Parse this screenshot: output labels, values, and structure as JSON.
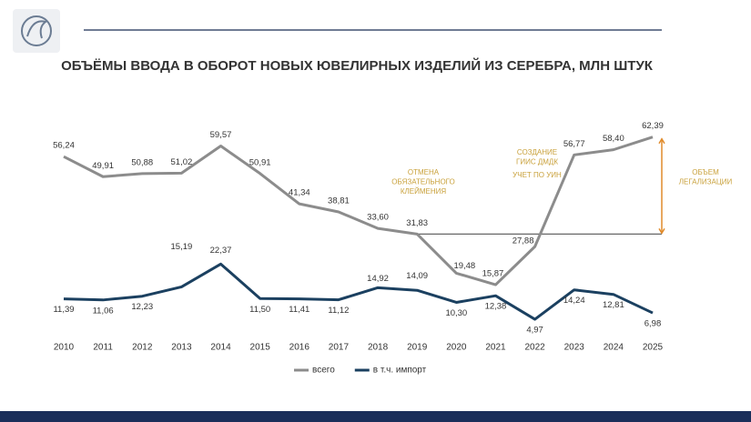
{
  "chart_data": {
    "type": "line",
    "title": "ОБЪЁМЫ ВВОДА В ОБОРОТ НОВЫХ ЮВЕЛИРНЫХ ИЗДЕЛИЙ ИЗ СЕРЕБРА, МЛН ШТУК",
    "categories": [
      "2010",
      "2011",
      "2012",
      "2013",
      "2014",
      "2015",
      "2016",
      "2017",
      "2018",
      "2019",
      "2020",
      "2021",
      "2022",
      "2023",
      "2024",
      "2025"
    ],
    "series": [
      {
        "name": "всего",
        "color": "#8c8c8c",
        "values": [
          56.24,
          49.91,
          50.88,
          51.02,
          59.57,
          50.91,
          41.34,
          38.81,
          33.6,
          31.83,
          19.48,
          15.87,
          27.88,
          56.77,
          58.4,
          62.39
        ],
        "value_labels": [
          "56,24",
          "49,91",
          "50,88",
          "51,02",
          "59,57",
          "50,91",
          "41,34",
          "38,81",
          "33,60",
          "31,83",
          "19,48",
          "15,87",
          "27,88",
          "56,77",
          "58,40",
          "62,39"
        ]
      },
      {
        "name": "в т.ч. импорт",
        "color": "#1b4060",
        "values": [
          11.39,
          11.06,
          12.23,
          15.19,
          22.37,
          11.5,
          11.41,
          11.12,
          14.92,
          14.09,
          10.3,
          12.38,
          4.97,
          14.24,
          12.81,
          6.98
        ],
        "value_labels": [
          "11,39",
          "11,06",
          "12,23",
          "15,19",
          "22,37",
          "11,50",
          "11,41",
          "11,12",
          "14,92",
          "14,09",
          "10,30",
          "12,38",
          "4,97",
          "14,24",
          "12,81",
          "6,98"
        ]
      }
    ],
    "annotations": [
      [
        "ОТМЕНА",
        "ОБЯЗАТЕЛЬНОГО",
        "КЛЕЙМЕНИЯ"
      ],
      [
        "СОЗДАНИЕ",
        "ГИИС ДМДК"
      ],
      [
        "УЧЕТ ПО УИН"
      ],
      [
        "ОБЪЕМ",
        "ЛЕГАЛИЗАЦИИ"
      ]
    ]
  }
}
